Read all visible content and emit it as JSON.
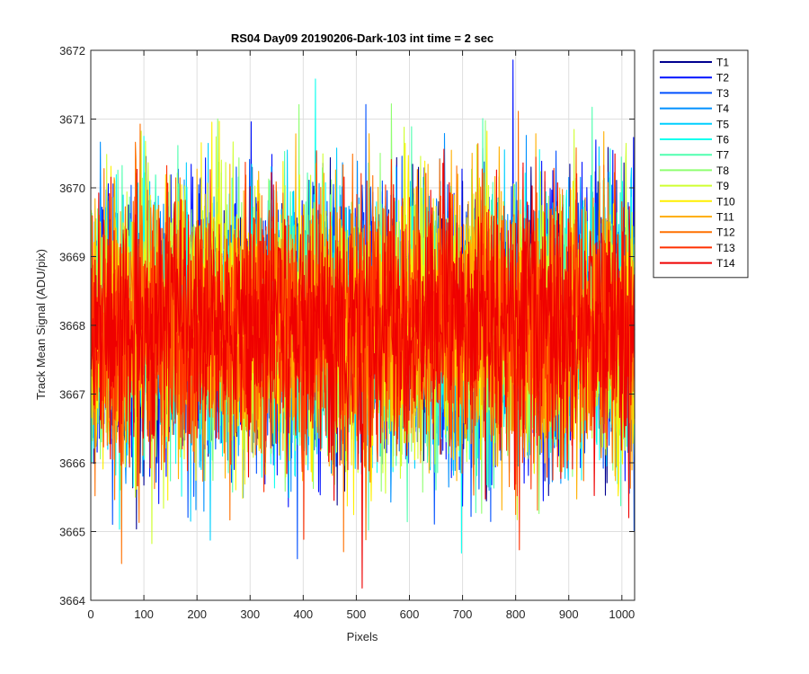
{
  "chart_data": {
    "type": "line",
    "title": "RS04 Day09 20190206-Dark-103 int time = 2 sec",
    "xlabel": "Pixels",
    "ylabel": "Track Mean Signal (ADU/pix)",
    "xlim": [
      0,
      1024
    ],
    "ylim": [
      3664,
      3672
    ],
    "x_ticks": [
      0,
      100,
      200,
      300,
      400,
      500,
      600,
      700,
      800,
      900,
      1000
    ],
    "y_ticks": [
      3664,
      3665,
      3666,
      3667,
      3668,
      3669,
      3670,
      3671,
      3672
    ],
    "grid": true,
    "legend_position": "outside-top-right",
    "x_range": [
      1,
      1024
    ],
    "baseline": 3668.0,
    "noise_sd": 0.95,
    "series": [
      {
        "name": "T1",
        "color": "#00008f"
      },
      {
        "name": "T2",
        "color": "#0010ff"
      },
      {
        "name": "T3",
        "color": "#0050ff"
      },
      {
        "name": "T4",
        "color": "#0090ff"
      },
      {
        "name": "T5",
        "color": "#00cfff"
      },
      {
        "name": "T6",
        "color": "#10ffef"
      },
      {
        "name": "T7",
        "color": "#50ffaf"
      },
      {
        "name": "T8",
        "color": "#8fff70"
      },
      {
        "name": "T9",
        "color": "#cfff30"
      },
      {
        "name": "T10",
        "color": "#ffef00"
      },
      {
        "name": "T11",
        "color": "#ffaf00"
      },
      {
        "name": "T12",
        "color": "#ff7000"
      },
      {
        "name": "T13",
        "color": "#ff3000"
      },
      {
        "name": "T14",
        "color": "#ef0000"
      }
    ]
  }
}
